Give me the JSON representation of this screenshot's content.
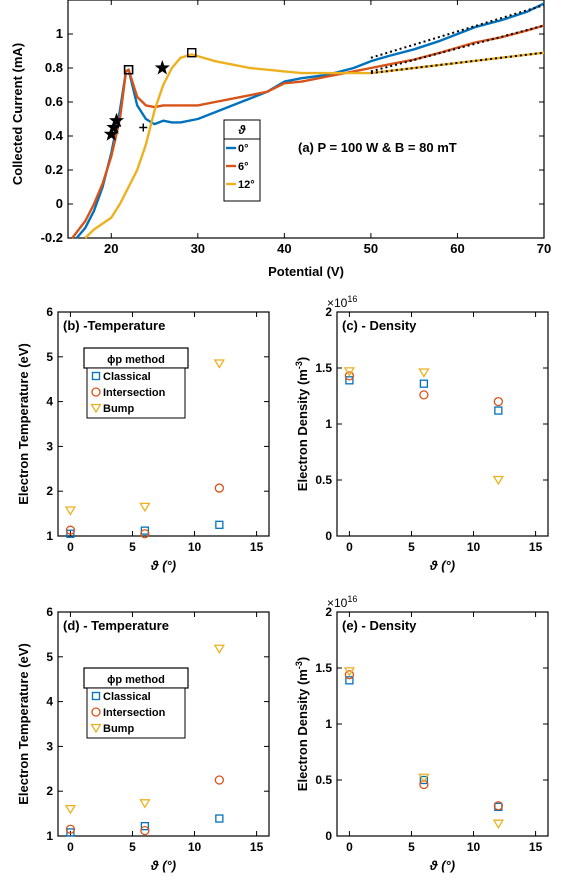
{
  "colors": {
    "classical": "#0072BD",
    "intersection": "#D95319",
    "bump": "#EDB120",
    "fit": "#000000"
  },
  "chart_data": [
    {
      "id": "a",
      "type": "line",
      "annotation": "(a) P = 100 W & B = 80 mT",
      "xlabel": "Potential (V)",
      "ylabel": "Collected Current (mA)",
      "xlim": [
        15,
        70
      ],
      "ylim": [
        -0.2,
        1.2
      ],
      "xticks": [
        "20",
        "30",
        "40",
        "50",
        "60",
        "70"
      ],
      "yticks": [
        "-0.2",
        "0",
        "0.2",
        "0.4",
        "0.6",
        "0.8",
        "1"
      ],
      "legend_title": "ϑ",
      "legend_position": "center",
      "series": [
        {
          "name": "0°",
          "x": [
            16,
            17,
            18,
            19,
            20,
            21,
            21.7,
            22,
            23,
            24,
            25,
            26,
            27,
            28,
            30,
            32,
            35,
            38,
            40,
            42,
            45,
            48,
            50,
            52,
            55,
            58,
            60,
            62,
            65,
            68,
            70
          ],
          "y": [
            -0.2,
            -0.14,
            -0.04,
            0.1,
            0.3,
            0.55,
            0.78,
            0.79,
            0.58,
            0.5,
            0.47,
            0.49,
            0.48,
            0.48,
            0.5,
            0.54,
            0.6,
            0.66,
            0.72,
            0.74,
            0.76,
            0.8,
            0.84,
            0.87,
            0.91,
            0.96,
            1.0,
            1.04,
            1.08,
            1.13,
            1.18
          ]
        },
        {
          "name": "6°",
          "x": [
            15.5,
            17,
            18,
            19,
            20,
            21,
            21.7,
            22,
            23,
            24,
            25,
            26,
            28,
            30,
            32,
            35,
            38,
            40,
            42,
            45,
            48,
            50,
            52,
            55,
            58,
            60,
            62,
            65,
            68,
            70
          ],
          "y": [
            -0.2,
            -0.1,
            0.0,
            0.12,
            0.28,
            0.5,
            0.78,
            0.79,
            0.63,
            0.58,
            0.57,
            0.58,
            0.58,
            0.58,
            0.6,
            0.63,
            0.66,
            0.71,
            0.72,
            0.75,
            0.78,
            0.8,
            0.82,
            0.85,
            0.89,
            0.92,
            0.95,
            0.98,
            1.02,
            1.05
          ]
        },
        {
          "name": "12°",
          "x": [
            17,
            18,
            20,
            21,
            22,
            23,
            24,
            25,
            26,
            27,
            28,
            29.3,
            30,
            32,
            34,
            36,
            38,
            40,
            42,
            45,
            48,
            50,
            55,
            60,
            65,
            70
          ],
          "y": [
            -0.2,
            -0.15,
            -0.08,
            0.0,
            0.1,
            0.2,
            0.35,
            0.55,
            0.7,
            0.8,
            0.86,
            0.88,
            0.87,
            0.84,
            0.82,
            0.8,
            0.79,
            0.78,
            0.77,
            0.77,
            0.77,
            0.77,
            0.8,
            0.83,
            0.86,
            0.89
          ]
        }
      ],
      "fits": [
        {
          "series": "0°",
          "x": [
            50,
            70
          ],
          "y": [
            0.86,
            1.17
          ]
        },
        {
          "series": "6°",
          "x": [
            50,
            70
          ],
          "y": [
            0.78,
            1.05
          ]
        },
        {
          "series": "12°",
          "x": [
            50,
            70
          ],
          "y": [
            0.77,
            0.89
          ]
        }
      ],
      "markers": {
        "intersection_stars": [
          [
            20,
            0.41
          ],
          [
            20.3,
            0.45
          ],
          [
            20.6,
            0.49
          ],
          [
            25.9,
            0.8
          ]
        ],
        "classical_squares": [
          [
            22,
            0.79
          ],
          [
            22,
            0.79
          ],
          [
            29.3,
            0.89
          ]
        ],
        "bump_plus": [
          [
            20.4,
            0.45
          ],
          [
            23.7,
            0.45
          ]
        ]
      }
    },
    {
      "id": "b",
      "type": "scatter",
      "annotation": "(b) -Temperature",
      "xlabel": "ϑ (°)",
      "ylabel": "Electron Temperature (eV)",
      "xlim": [
        -1,
        16
      ],
      "ylim": [
        1,
        6
      ],
      "xticks": [
        "0",
        "5",
        "10",
        "15"
      ],
      "yticks": [
        "1",
        "2",
        "3",
        "4",
        "5",
        "6"
      ],
      "legend_title": "ϕp method",
      "series": [
        {
          "name": "Classical",
          "x": [
            0,
            6,
            12
          ],
          "y": [
            1.05,
            1.12,
            1.25
          ]
        },
        {
          "name": "Intersection",
          "x": [
            0,
            6,
            12
          ],
          "y": [
            1.13,
            1.05,
            2.07
          ]
        },
        {
          "name": "Bump",
          "x": [
            0,
            6,
            12
          ],
          "y": [
            1.57,
            1.65,
            4.85
          ]
        }
      ]
    },
    {
      "id": "c",
      "type": "scatter",
      "annotation": "(c) - Density",
      "exponent": "×10",
      "exponent_power": "16",
      "xlabel": "ϑ (°)",
      "ylabel": "Electron Density (m",
      "ylabel_power": "-3",
      "ylabel_end": ")",
      "xlim": [
        -1,
        16
      ],
      "ylim": [
        0,
        2
      ],
      "xticks": [
        "0",
        "5",
        "10",
        "15"
      ],
      "yticks": [
        "0",
        "0.5",
        "1",
        "1.5",
        "2"
      ],
      "series": [
        {
          "name": "Classical",
          "x": [
            0,
            6,
            12
          ],
          "y": [
            1.39,
            1.36,
            1.12
          ]
        },
        {
          "name": "Intersection",
          "x": [
            0,
            6,
            12
          ],
          "y": [
            1.43,
            1.26,
            1.2
          ]
        },
        {
          "name": "Bump",
          "x": [
            0,
            6,
            12
          ],
          "y": [
            1.47,
            1.46,
            0.5
          ]
        }
      ]
    },
    {
      "id": "d",
      "type": "scatter",
      "annotation": "(d) - Temperature",
      "xlabel": "ϑ (°)",
      "ylabel": "Electron Temperature (eV)",
      "xlim": [
        -1,
        16
      ],
      "ylim": [
        1,
        6
      ],
      "xticks": [
        "0",
        "5",
        "10",
        "15"
      ],
      "yticks": [
        "1",
        "2",
        "3",
        "4",
        "5",
        "6"
      ],
      "legend_title": "ϕp method",
      "series": [
        {
          "name": "Classical",
          "x": [
            0,
            6,
            12
          ],
          "y": [
            1.08,
            1.22,
            1.39
          ]
        },
        {
          "name": "Intersection",
          "x": [
            0,
            6,
            12
          ],
          "y": [
            1.15,
            1.12,
            2.25
          ]
        },
        {
          "name": "Bump",
          "x": [
            0,
            6,
            12
          ],
          "y": [
            1.6,
            1.73,
            5.18
          ]
        }
      ]
    },
    {
      "id": "e",
      "type": "scatter",
      "annotation": "(e) - Density",
      "exponent": "×10",
      "exponent_power": "16",
      "xlabel": "ϑ (°)",
      "ylabel": "Electron Density (m",
      "ylabel_power": "-3",
      "ylabel_end": ")",
      "xlim": [
        -1,
        16
      ],
      "ylim": [
        0,
        2
      ],
      "xticks": [
        "0",
        "5",
        "10",
        "15"
      ],
      "yticks": [
        "0",
        "0.5",
        "1",
        "1.5",
        "2"
      ],
      "series": [
        {
          "name": "Classical",
          "x": [
            0,
            6,
            12
          ],
          "y": [
            1.39,
            0.5,
            0.26
          ]
        },
        {
          "name": "Intersection",
          "x": [
            0,
            6,
            12
          ],
          "y": [
            1.44,
            0.46,
            0.27
          ]
        },
        {
          "name": "Bump",
          "x": [
            0,
            6,
            12
          ],
          "y": [
            1.47,
            0.52,
            0.11
          ]
        }
      ]
    }
  ]
}
